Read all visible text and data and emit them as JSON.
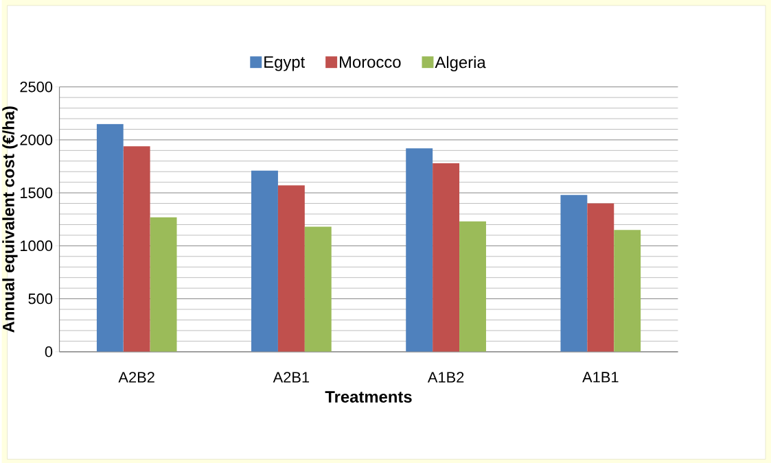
{
  "chart_data": {
    "type": "bar",
    "xlabel": "Treatments",
    "ylabel": "Annual equivalent cost (€/ha)",
    "categories": [
      "A2B2",
      "A2B1",
      "A1B2",
      "A1B1"
    ],
    "series": [
      {
        "name": "Egypt",
        "color": "#4f81bd",
        "values": [
          2150,
          1710,
          1920,
          1480
        ]
      },
      {
        "name": "Morocco",
        "color": "#c0504d",
        "values": [
          1940,
          1570,
          1780,
          1400
        ]
      },
      {
        "name": "Algeria",
        "color": "#9bbb59",
        "values": [
          1270,
          1180,
          1230,
          1150
        ]
      }
    ],
    "ylim": [
      0,
      2500
    ],
    "yticks": [
      0,
      500,
      1000,
      1500,
      2000,
      2500
    ],
    "grid": "y",
    "legend": "top"
  }
}
